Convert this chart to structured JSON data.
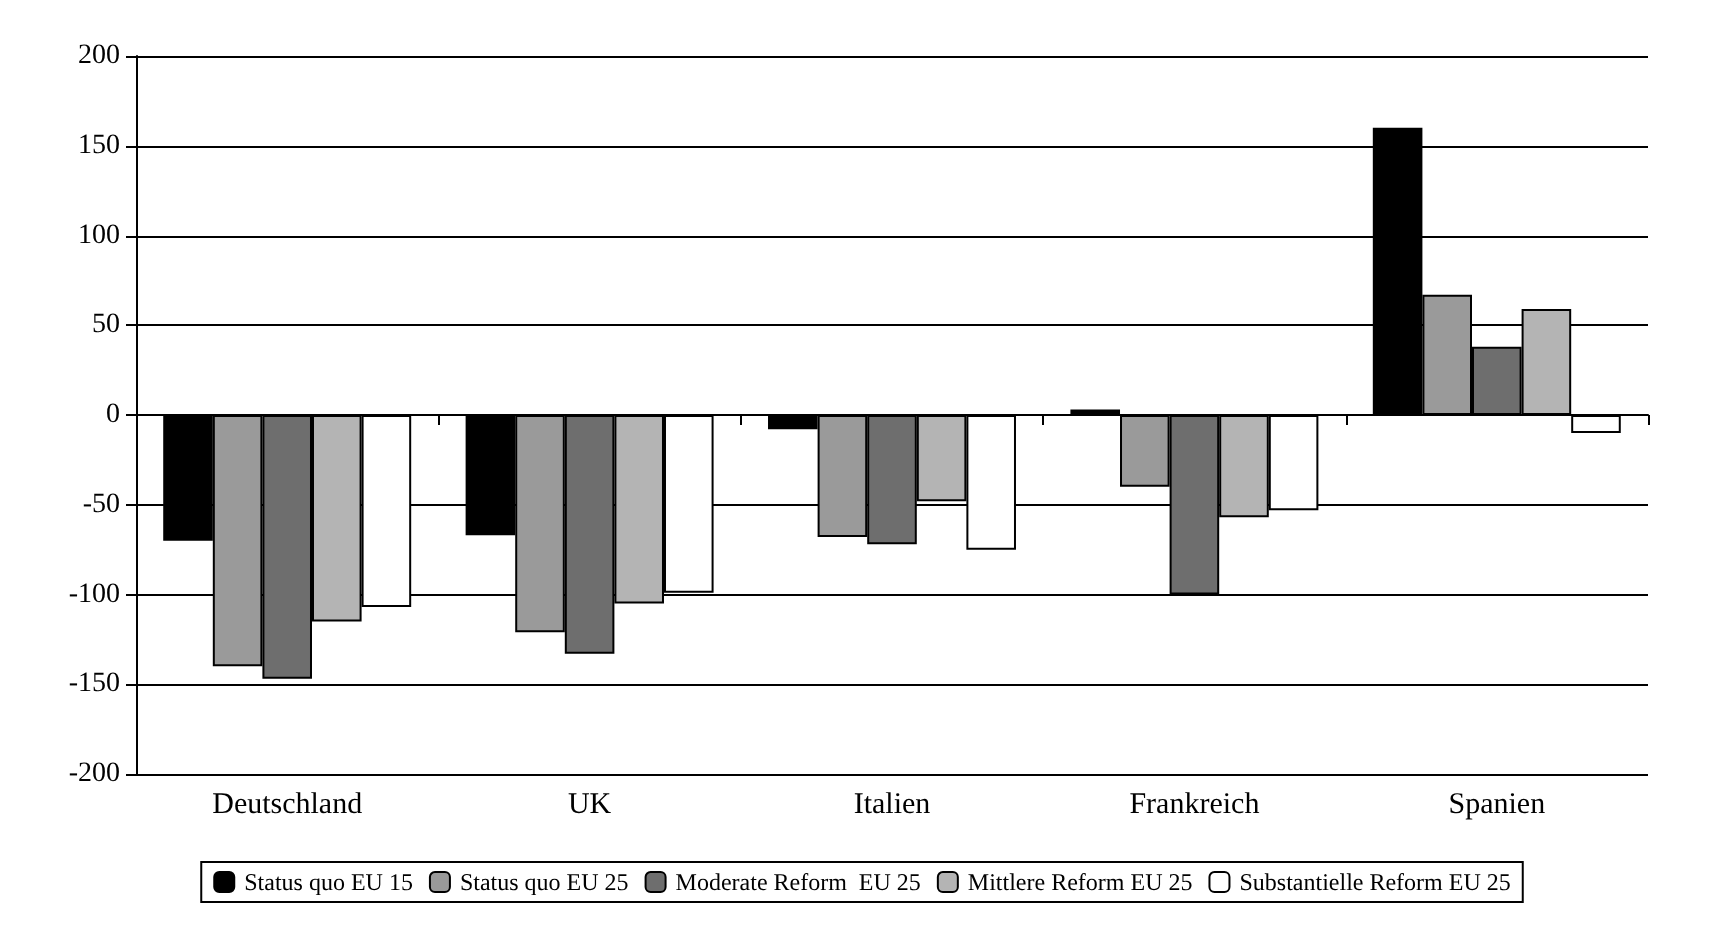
{
  "chart_data": {
    "type": "bar",
    "categories": [
      "Deutschland",
      "UK",
      "Italien",
      "Frankreich",
      "Spanien"
    ],
    "series": [
      {
        "name": "Status quo EU 15",
        "color": "#000000",
        "values": [
          -70,
          -67,
          -8,
          3,
          160
        ]
      },
      {
        "name": "Status quo EU 25",
        "color": "#9a9a9a",
        "values": [
          -140,
          -121,
          -68,
          -40,
          67
        ]
      },
      {
        "name": "Moderate Reform  EU 25",
        "color": "#6e6e6e",
        "values": [
          -147,
          -133,
          -72,
          -100,
          38
        ]
      },
      {
        "name": "Mittlere Reform EU 25",
        "color": "#b4b4b4",
        "values": [
          -115,
          -105,
          -48,
          -57,
          59
        ]
      },
      {
        "name": "Substantielle Reform EU 25",
        "color": "#ffffff",
        "values": [
          -107,
          -99,
          -75,
          -53,
          -10
        ]
      }
    ],
    "ylim": [
      -200,
      200
    ],
    "yticks": [
      -200,
      -150,
      -100,
      -50,
      0,
      50,
      100,
      150,
      200
    ],
    "grid": "y",
    "legend": "bottom"
  }
}
